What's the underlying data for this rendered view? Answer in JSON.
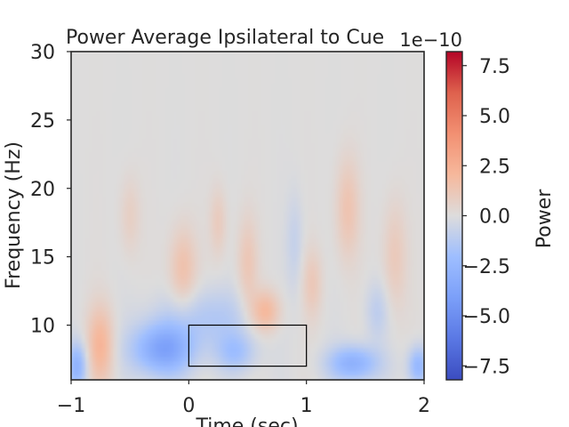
{
  "chart_data": {
    "type": "heatmap",
    "title": "Power Average Ipsilateral to Cue",
    "xlabel": "Time (sec)",
    "ylabel": "Frequency (Hz)",
    "xlim": [
      -1,
      2
    ],
    "ylim": [
      6,
      30
    ],
    "x_ticks": [
      "−1",
      "0",
      "1",
      "2"
    ],
    "x_tick_values": [
      -1,
      0,
      1,
      2
    ],
    "y_ticks": [
      "10",
      "15",
      "20",
      "25",
      "30"
    ],
    "y_tick_values": [
      10,
      15,
      20,
      25,
      30
    ],
    "colorbar": {
      "label": "Power",
      "offset_text": "1e−10",
      "range": [
        -8.2,
        8.2
      ],
      "ticks": [
        "−7.5",
        "−5.0",
        "−2.5",
        "0.0",
        "2.5",
        "5.0",
        "7.5"
      ],
      "tick_values": [
        -7.5,
        -5.0,
        -2.5,
        0.0,
        2.5,
        5.0,
        7.5
      ],
      "colormap": "coolwarm"
    },
    "roi_box": {
      "t_start": 0,
      "t_end": 1,
      "f_start": 7,
      "f_end": 10
    },
    "blobs": [
      {
        "t": -0.75,
        "f": 8.5,
        "st": 0.08,
        "sf": 2.0,
        "v": 2.2
      },
      {
        "t": -0.22,
        "f": 8.2,
        "st": 0.18,
        "sf": 1.3,
        "v": -3.8
      },
      {
        "t": -0.05,
        "f": 14.0,
        "st": 0.08,
        "sf": 2.2,
        "v": 1.6
      },
      {
        "t": 0.65,
        "f": 11.0,
        "st": 0.09,
        "sf": 1.1,
        "v": 2.3
      },
      {
        "t": 0.5,
        "f": 14.5,
        "st": 0.06,
        "sf": 2.4,
        "v": 1.2
      },
      {
        "t": 0.25,
        "f": 17.5,
        "st": 0.05,
        "sf": 1.8,
        "v": 1.0
      },
      {
        "t": 1.4,
        "f": 7.2,
        "st": 0.15,
        "sf": 0.9,
        "v": -3.0
      },
      {
        "t": 1.35,
        "f": 18.5,
        "st": 0.07,
        "sf": 2.6,
        "v": 1.4
      },
      {
        "t": 1.05,
        "f": 13.0,
        "st": 0.06,
        "sf": 1.8,
        "v": 1.1
      },
      {
        "t": 1.75,
        "f": 15.0,
        "st": 0.07,
        "sf": 2.8,
        "v": 1.1
      },
      {
        "t": -0.5,
        "f": 18.0,
        "st": 0.06,
        "sf": 2.0,
        "v": 0.8
      },
      {
        "t": 0.15,
        "f": 10.5,
        "st": 0.3,
        "sf": 1.5,
        "v": -1.4
      },
      {
        "t": 0.4,
        "f": 8.0,
        "st": 0.12,
        "sf": 1.0,
        "v": -1.8
      },
      {
        "t": -0.95,
        "f": 7.0,
        "st": 0.06,
        "sf": 1.2,
        "v": -2.8
      },
      {
        "t": 1.95,
        "f": 7.0,
        "st": 0.06,
        "sf": 1.0,
        "v": -2.6
      },
      {
        "t": 0.9,
        "f": 16.0,
        "st": 0.05,
        "sf": 2.5,
        "v": -0.8
      },
      {
        "t": 1.6,
        "f": 11.0,
        "st": 0.07,
        "sf": 1.5,
        "v": -1.0
      }
    ]
  }
}
